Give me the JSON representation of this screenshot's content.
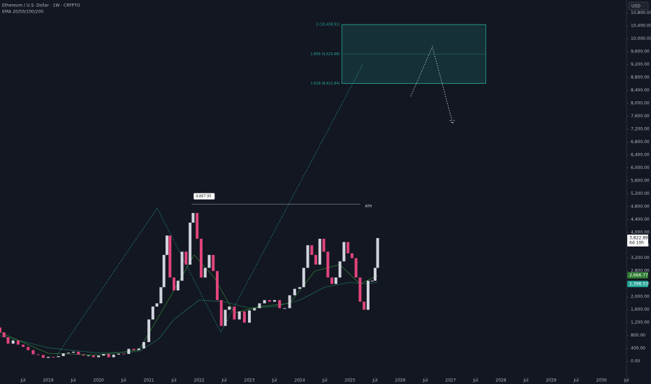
{
  "chart_data": {
    "type": "candlestick",
    "title": "Ethereum / U.S. Dollar · 1W · CRYPTO",
    "indicator": "EMA 20/50/100/200",
    "currency": "USD",
    "x": [
      2018.04,
      2018.12,
      2018.2,
      2018.3,
      2018.4,
      2018.5,
      2018.6,
      2018.7,
      2018.8,
      2018.9,
      2019.0,
      2019.1,
      2019.2,
      2019.3,
      2019.4,
      2019.5,
      2019.6,
      2019.7,
      2019.8,
      2019.9,
      2020.0,
      2020.1,
      2020.2,
      2020.3,
      2020.4,
      2020.5,
      2020.6,
      2020.7,
      2020.8,
      2020.9,
      2021.0,
      2021.08,
      2021.16,
      2021.24,
      2021.3,
      2021.36,
      2021.42,
      2021.5,
      2021.58,
      2021.66,
      2021.74,
      2021.82,
      2021.88,
      2021.96,
      2022.04,
      2022.12,
      2022.2,
      2022.28,
      2022.36,
      2022.44,
      2022.52,
      2022.6,
      2022.7,
      2022.8,
      2022.9,
      2023.0,
      2023.1,
      2023.2,
      2023.3,
      2023.4,
      2023.5,
      2023.6,
      2023.7,
      2023.8,
      2023.9,
      2024.0,
      2024.08,
      2024.16,
      2024.24,
      2024.32,
      2024.4,
      2024.48,
      2024.56,
      2024.64,
      2024.72,
      2024.8,
      2024.88,
      2024.96,
      2025.04,
      2025.12,
      2025.2,
      2025.28,
      2025.36,
      2025.44,
      2025.5,
      2025.55
    ],
    "open": [
      1050,
      900,
      750,
      550,
      650,
      520,
      450,
      350,
      220,
      200,
      110,
      140,
      135,
      165,
      250,
      270,
      300,
      210,
      180,
      185,
      130,
      180,
      230,
      130,
      210,
      240,
      230,
      390,
      350,
      400,
      600,
      1300,
      1700,
      1800,
      2300,
      3300,
      3900,
      2600,
      2200,
      2500,
      3400,
      3000,
      4300,
      4600,
      3800,
      2600,
      2900,
      3300,
      2800,
      1900,
      1100,
      1600,
      1700,
      1300,
      1550,
      1200,
      1580,
      1650,
      1800,
      1900,
      1850,
      1900,
      1650,
      1650,
      2050,
      2250,
      2300,
      2900,
      3600,
      3300,
      3000,
      3800,
      3400,
      2600,
      2400,
      2600,
      3100,
      3700,
      3350,
      3200,
      2600,
      1850,
      1600,
      2500,
      2500,
      2900
    ],
    "close": [
      900,
      750,
      550,
      650,
      520,
      450,
      350,
      220,
      200,
      110,
      140,
      135,
      165,
      250,
      270,
      300,
      210,
      180,
      185,
      130,
      180,
      230,
      130,
      210,
      240,
      230,
      390,
      350,
      400,
      600,
      1300,
      1700,
      1800,
      2300,
      3300,
      3900,
      2600,
      2200,
      2500,
      3400,
      3000,
      4300,
      4600,
      3800,
      2600,
      2900,
      3300,
      2800,
      1900,
      1100,
      1600,
      1700,
      1300,
      1550,
      1200,
      1580,
      1650,
      1800,
      1900,
      1850,
      1900,
      1650,
      1650,
      2050,
      2250,
      2300,
      2900,
      3600,
      3300,
      3000,
      3800,
      3400,
      2600,
      2400,
      2600,
      3100,
      3700,
      3350,
      3200,
      2600,
      1850,
      1600,
      2500,
      2500,
      2900,
      3822.89
    ],
    "up_color": "#d1d4dc",
    "down_color": "#e0457b",
    "overlays": [
      {
        "color": "#1e6b52",
        "x": [
          2018.04,
          2019.0,
          2020.0,
          2020.8,
          2021.2,
          2021.5,
          2022.0,
          2022.5,
          2023.0,
          2023.5,
          2024.0,
          2024.5,
          2025.0,
          2025.3,
          2025.55
        ],
        "values": [
          800,
          420,
          260,
          300,
          700,
          1300,
          1900,
          1850,
          1650,
          1700,
          1900,
          2300,
          2450,
          2400,
          2450
        ]
      },
      {
        "color": "#2e7d32",
        "x": [
          2018.04,
          2019.0,
          2020.0,
          2020.8,
          2021.2,
          2021.5,
          2021.9,
          2022.3,
          2022.7,
          2023.2,
          2023.8,
          2024.3,
          2024.8,
          2025.2,
          2025.55
        ],
        "values": [
          900,
          250,
          200,
          350,
          1400,
          2200,
          3300,
          2600,
          1500,
          1700,
          1800,
          2800,
          3000,
          2400,
          2666.77
        ]
      }
    ],
    "xlim": [
      2018.04,
      2030.5
    ],
    "ylim": [
      -700,
      11200
    ],
    "xticks": [
      {
        "value": 2018.5,
        "label": "Jul"
      },
      {
        "value": 2019,
        "label": "2019"
      },
      {
        "value": 2019.5,
        "label": "Jul"
      },
      {
        "value": 2020,
        "label": "2020"
      },
      {
        "value": 2020.5,
        "label": "Jul"
      },
      {
        "value": 2021,
        "label": "2021"
      },
      {
        "value": 2021.5,
        "label": "Jul"
      },
      {
        "value": 2022,
        "label": "2022"
      },
      {
        "value": 2022.5,
        "label": "Jul"
      },
      {
        "value": 2023,
        "label": "2023"
      },
      {
        "value": 2023.5,
        "label": "Jul"
      },
      {
        "value": 2024,
        "label": "2024"
      },
      {
        "value": 2024.5,
        "label": "Jul"
      },
      {
        "value": 2025,
        "label": "2025"
      },
      {
        "value": 2025.5,
        "label": "Jul"
      },
      {
        "value": 2026,
        "label": "2026"
      },
      {
        "value": 2026.5,
        "label": "Jul"
      },
      {
        "value": 2027,
        "label": "2027"
      },
      {
        "value": 2027.5,
        "label": "Jul"
      },
      {
        "value": 2028,
        "label": "2028"
      },
      {
        "value": 2028.5,
        "label": "Jul"
      },
      {
        "value": 2029,
        "label": "2029"
      },
      {
        "value": 2029.5,
        "label": "Jul"
      },
      {
        "value": 2030,
        "label": "2030"
      },
      {
        "value": 2030.5,
        "label": "Jul"
      }
    ],
    "yticks": [
      {
        "value": 0,
        "label": "0.00"
      },
      {
        "value": 400,
        "label": "400.00"
      },
      {
        "value": 800,
        "label": "800.00"
      },
      {
        "value": 1200,
        "label": "1,200.00"
      },
      {
        "value": 1600,
        "label": "1,600.00"
      },
      {
        "value": 2000,
        "label": "2,000.00"
      },
      {
        "value": 2400,
        "label": "2,400.00"
      },
      {
        "value": 2800,
        "label": "2,800.00"
      },
      {
        "value": 3200,
        "label": "3,200.00"
      },
      {
        "value": 3600,
        "label": "3,600.00"
      },
      {
        "value": 4000,
        "label": "4,000.00"
      },
      {
        "value": 4400,
        "label": "4,400.00"
      },
      {
        "value": 4800,
        "label": "4,800.00"
      },
      {
        "value": 5200,
        "label": "5,200.00"
      },
      {
        "value": 5600,
        "label": "5,600.00"
      },
      {
        "value": 6000,
        "label": "6,000.00"
      },
      {
        "value": 6400,
        "label": "6,400.00"
      },
      {
        "value": 6800,
        "label": "6,800.00"
      },
      {
        "value": 7200,
        "label": "7,200.00"
      },
      {
        "value": 7600,
        "label": "7,600.00"
      },
      {
        "value": 8000,
        "label": "8,000.00"
      },
      {
        "value": 8400,
        "label": "8,400.00"
      },
      {
        "value": 8800,
        "label": "8,800.00"
      },
      {
        "value": 9200,
        "label": "9,200.00"
      },
      {
        "value": 9600,
        "label": "9,600.00"
      },
      {
        "value": 10000,
        "label": "10,000.00"
      },
      {
        "value": 10400,
        "label": "10,400.00"
      },
      {
        "value": 10800,
        "label": "10,800.00"
      }
    ],
    "fib": [
      {
        "value": 10438.51,
        "label": "2 (10,438.51)"
      },
      {
        "value": 9525.68,
        "label": "1.809 (9,525.68)"
      },
      {
        "value": 8612.84,
        "label": "1.618 (8,612.84)"
      }
    ],
    "ath": {
      "value": 4867.95,
      "label": "4,867.95",
      "text": "ATH"
    },
    "last_price": {
      "value": 3822.89,
      "label": "3,822.89",
      "countdown": "6d 10h"
    },
    "ema_labels": [
      {
        "value": 2666.77,
        "label": "2,666.77",
        "color": "#2e7d32"
      },
      {
        "value": 2398.53,
        "label": "2,398.53",
        "color": "#26a69a"
      }
    ],
    "grid": false
  }
}
